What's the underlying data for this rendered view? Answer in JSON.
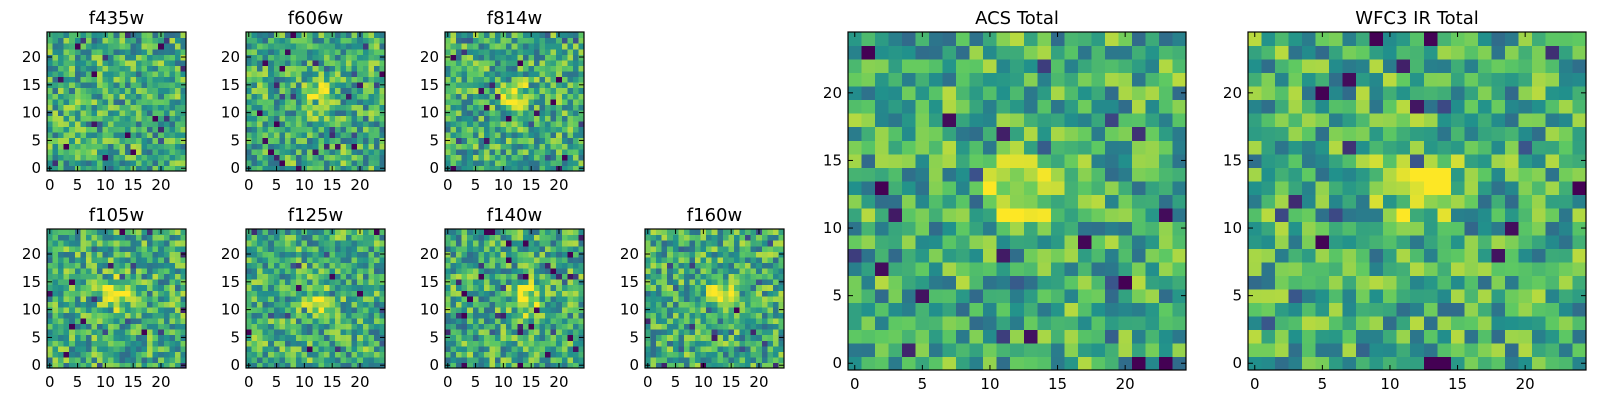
{
  "figure": {
    "colormap": "viridis"
  },
  "chart_data": [
    {
      "id": "f435w",
      "type": "heatmap",
      "title": "f435w",
      "grid_size": 25,
      "x_ticks": [
        0,
        5,
        10,
        15,
        20
      ],
      "y_ticks": [
        0,
        5,
        10,
        15,
        20
      ],
      "source_peak": null,
      "seed": 11
    },
    {
      "id": "f606w",
      "type": "heatmap",
      "title": "f606w",
      "grid_size": 25,
      "x_ticks": [
        0,
        5,
        10,
        15,
        20
      ],
      "y_ticks": [
        0,
        5,
        10,
        15,
        20
      ],
      "source_peak": [
        12,
        13
      ],
      "seed": 23
    },
    {
      "id": "f814w",
      "type": "heatmap",
      "title": "f814w",
      "grid_size": 25,
      "x_ticks": [
        0,
        5,
        10,
        15,
        20
      ],
      "y_ticks": [
        0,
        5,
        10,
        15,
        20
      ],
      "source_peak": [
        12,
        13
      ],
      "seed": 37
    },
    {
      "id": "f105w",
      "type": "heatmap",
      "title": "f105w",
      "grid_size": 25,
      "x_ticks": [
        0,
        5,
        10,
        15,
        20
      ],
      "y_ticks": [
        0,
        5,
        10,
        15,
        20
      ],
      "source_peak": [
        12,
        13
      ],
      "seed": 41
    },
    {
      "id": "f125w",
      "type": "heatmap",
      "title": "f125w",
      "grid_size": 25,
      "x_ticks": [
        0,
        5,
        10,
        15,
        20
      ],
      "y_ticks": [
        0,
        5,
        10,
        15,
        20
      ],
      "source_peak": [
        13,
        11
      ],
      "seed": 53
    },
    {
      "id": "f140w",
      "type": "heatmap",
      "title": "f140w",
      "grid_size": 25,
      "x_ticks": [
        0,
        5,
        10,
        15,
        20
      ],
      "y_ticks": [
        0,
        5,
        10,
        15,
        20
      ],
      "source_peak": [
        14,
        12
      ],
      "seed": 67
    },
    {
      "id": "f160w",
      "type": "heatmap",
      "title": "f160w",
      "grid_size": 25,
      "x_ticks": [
        0,
        5,
        10,
        15,
        20
      ],
      "y_ticks": [
        0,
        5,
        10,
        15,
        20
      ],
      "source_peak": [
        13,
        13
      ],
      "seed": 79
    },
    {
      "id": "acs_total",
      "type": "heatmap",
      "title": "ACS Total",
      "grid_size": 25,
      "x_ticks": [
        0,
        5,
        10,
        15,
        20
      ],
      "y_ticks": [
        0,
        5,
        10,
        15,
        20
      ],
      "source_peak": [
        12,
        13
      ],
      "seed": 83
    },
    {
      "id": "wfc3_ir_total",
      "type": "heatmap",
      "title": "WFC3 IR Total",
      "grid_size": 25,
      "x_ticks": [
        0,
        5,
        10,
        15,
        20
      ],
      "y_ticks": [
        0,
        5,
        10,
        15,
        20
      ],
      "source_peak": [
        12,
        13
      ],
      "seed": 97
    }
  ]
}
